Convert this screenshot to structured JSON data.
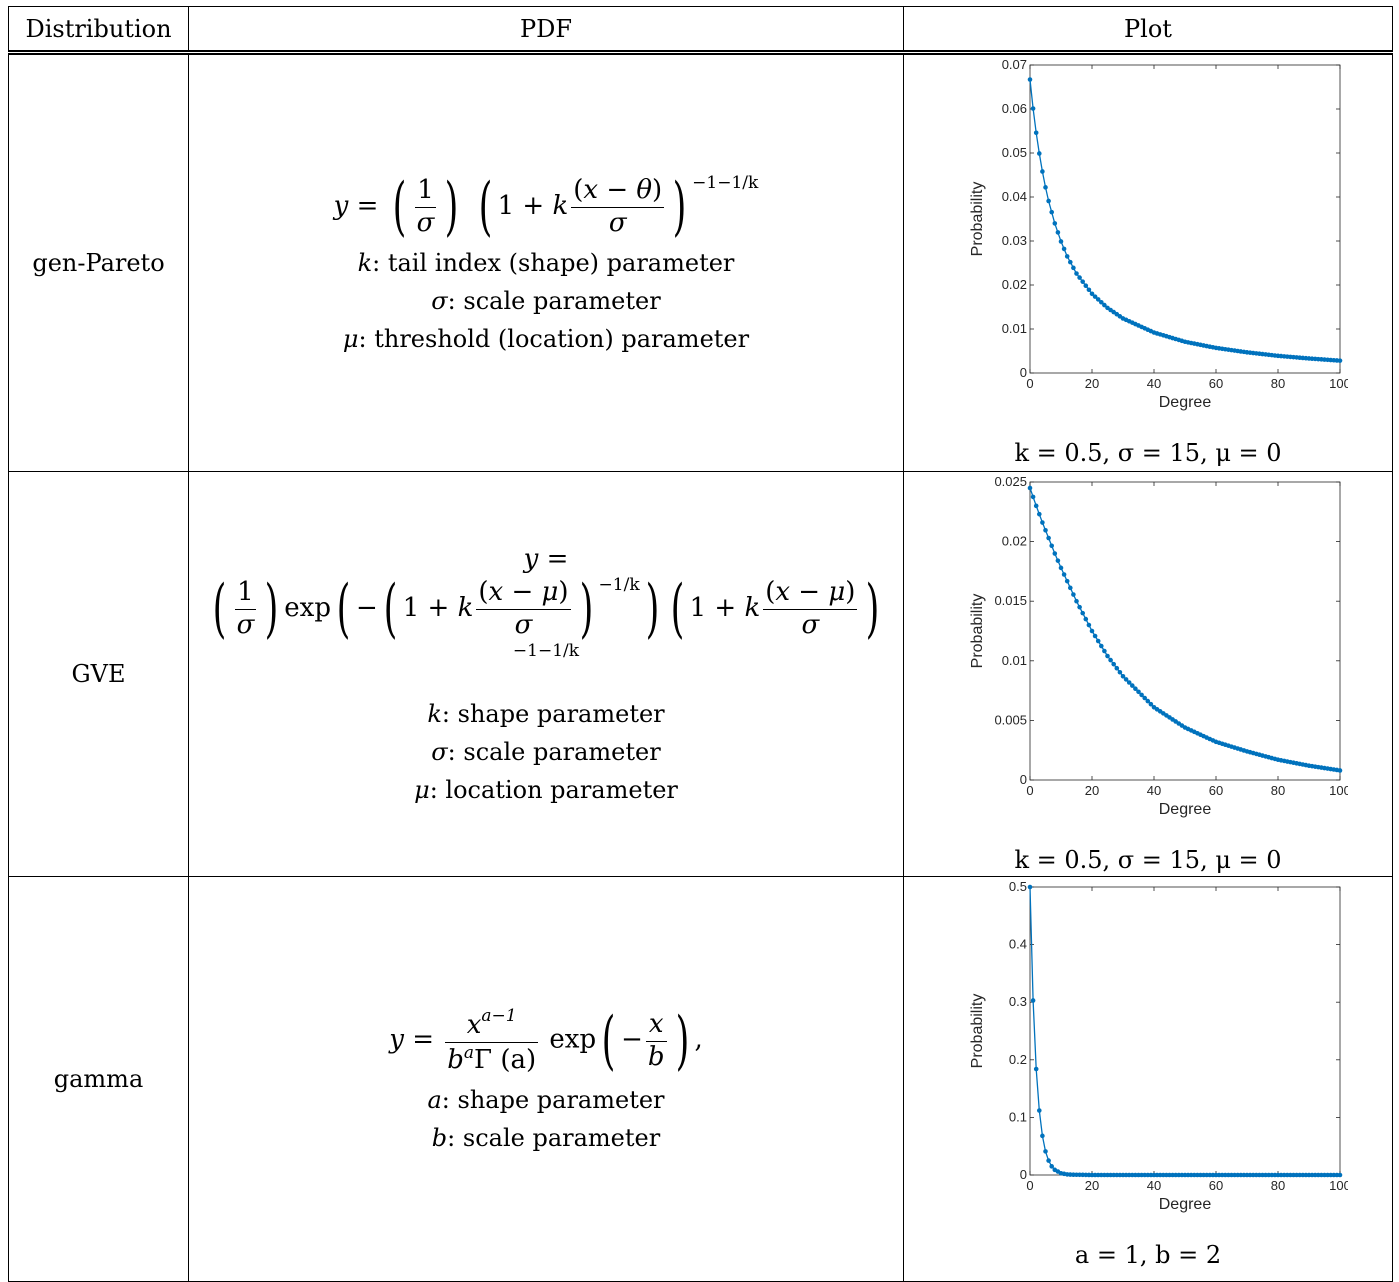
{
  "table": {
    "headers": [
      "Distribution",
      "PDF",
      "Plot"
    ],
    "rows": [
      {
        "name": "gen-Pareto",
        "params": [
          {
            "sym": "k",
            "text": ": tail index (shape) parameter"
          },
          {
            "sym": "σ",
            "text": ": scale parameter"
          },
          {
            "sym": "μ",
            "text": ": threshold (location) parameter"
          }
        ],
        "plot_caption": "k = 0.5, σ = 15, μ = 0"
      },
      {
        "name": "GVE",
        "params": [
          {
            "sym": "k",
            "text": ": shape parameter"
          },
          {
            "sym": "σ",
            "text": ": scale parameter"
          },
          {
            "sym": "μ",
            "text": ": location parameter"
          }
        ],
        "plot_caption": "k = 0.5, σ = 15, μ = 0"
      },
      {
        "name": "gamma",
        "params": [
          {
            "sym": "a",
            "text": ": shape parameter"
          },
          {
            "sym": "b",
            "text": ": scale parameter"
          }
        ],
        "plot_caption": "a = 1, b = 2"
      }
    ]
  },
  "formulas": {
    "genpareto": {
      "lhs": "y =",
      "exponent": "−1−1/k"
    },
    "gve": {
      "lhs": "y =",
      "exponent1": "−1/k",
      "exponent2": "−1−1/k"
    },
    "gamma": {
      "lhs": "y =",
      "num": "x",
      "num_exp": "a−1",
      "den": "b",
      "den_exp": "a",
      "gamma": "Γ (a)"
    }
  },
  "chart_data": [
    {
      "type": "line",
      "xlabel": "Degree",
      "ylabel": "Probability",
      "xlim": [
        0,
        100
      ],
      "ylim": [
        0,
        0.07
      ],
      "xticks": [
        0,
        20,
        40,
        60,
        80,
        100
      ],
      "yticks": [
        0,
        0.01,
        0.02,
        0.03,
        0.04,
        0.05,
        0.06,
        0.07
      ],
      "ytick_labels": [
        "0",
        "0.01",
        "0.02",
        "0.03",
        "0.04",
        "0.05",
        "0.06",
        "0.07"
      ],
      "color": "#0072BD",
      "x": [
        0,
        1,
        2,
        3,
        4,
        5,
        6,
        8,
        10,
        12,
        15,
        20,
        25,
        30,
        40,
        50,
        60,
        70,
        80,
        90,
        100
      ],
      "values": [
        0.0667,
        0.0601,
        0.0546,
        0.0499,
        0.0458,
        0.0422,
        0.0391,
        0.034,
        0.0299,
        0.0265,
        0.0226,
        0.018,
        0.0148,
        0.0124,
        0.0092,
        0.0071,
        0.0057,
        0.0047,
        0.0039,
        0.0033,
        0.0028
      ]
    },
    {
      "type": "line",
      "xlabel": "Degree",
      "ylabel": "Probability",
      "xlim": [
        0,
        100
      ],
      "ylim": [
        0,
        0.025
      ],
      "xticks": [
        0,
        20,
        40,
        60,
        80,
        100
      ],
      "yticks": [
        0,
        0.005,
        0.01,
        0.015,
        0.02,
        0.025
      ],
      "ytick_labels": [
        "0",
        "0.005",
        "0.01",
        "0.015",
        "0.02",
        "0.025"
      ],
      "color": "#0072BD",
      "x": [
        0,
        2,
        4,
        6,
        8,
        10,
        15,
        20,
        25,
        30,
        40,
        50,
        60,
        70,
        80,
        90,
        100
      ],
      "values": [
        0.0245,
        0.023,
        0.0216,
        0.0203,
        0.019,
        0.0178,
        0.015,
        0.0125,
        0.0104,
        0.0087,
        0.0061,
        0.0044,
        0.0032,
        0.0024,
        0.0017,
        0.0012,
        0.0008
      ]
    },
    {
      "type": "line",
      "xlabel": "Degree",
      "ylabel": "Probability",
      "xlim": [
        0,
        100
      ],
      "ylim": [
        0,
        0.5
      ],
      "xticks": [
        0,
        20,
        40,
        60,
        80,
        100
      ],
      "yticks": [
        0,
        0.1,
        0.2,
        0.3,
        0.4,
        0.5
      ],
      "ytick_labels": [
        "0",
        "0.1",
        "0.2",
        "0.3",
        "0.4",
        "0.5"
      ],
      "color": "#0072BD",
      "x": [
        0,
        1,
        2,
        3,
        4,
        5,
        6,
        7,
        8,
        9,
        10,
        12,
        14,
        20,
        30,
        40,
        50,
        60,
        70,
        80,
        90,
        100
      ],
      "values": [
        0.5,
        0.303,
        0.184,
        0.112,
        0.068,
        0.041,
        0.025,
        0.015,
        0.009,
        0.006,
        0.003,
        0.001,
        0.0005,
        0,
        0,
        0,
        0,
        0,
        0,
        0,
        0,
        0
      ]
    }
  ]
}
